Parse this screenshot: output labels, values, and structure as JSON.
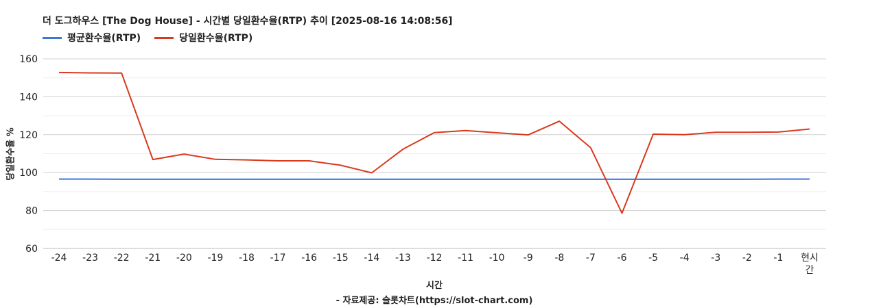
{
  "chart_data": {
    "type": "line",
    "title": "더 도그하우스 [The Dog House] - 시간별 당일환수율(RTP) 추이 [2025-08-16 14:08:56]",
    "xlabel": "시간",
    "ylabel": "당일환수율 %",
    "source": "- 자료제공: 슬롯차트(https://slot-chart.com)",
    "categories": [
      "-24",
      "-23",
      "-22",
      "-21",
      "-20",
      "-19",
      "-18",
      "-17",
      "-16",
      "-15",
      "-14",
      "-13",
      "-12",
      "-11",
      "-10",
      "-9",
      "-8",
      "-7",
      "-6",
      "-5",
      "-4",
      "-3",
      "-2",
      "-1",
      "현시간"
    ],
    "x_tick_lines": [
      [
        "-24"
      ],
      [
        "-23"
      ],
      [
        "-22"
      ],
      [
        "-21"
      ],
      [
        "-20"
      ],
      [
        "-19"
      ],
      [
        "-18"
      ],
      [
        "-17"
      ],
      [
        "-16"
      ],
      [
        "-15"
      ],
      [
        "-14"
      ],
      [
        "-13"
      ],
      [
        "-12"
      ],
      [
        "-11"
      ],
      [
        "-10"
      ],
      [
        "-9"
      ],
      [
        "-8"
      ],
      [
        "-7"
      ],
      [
        "-6"
      ],
      [
        "-5"
      ],
      [
        "-4"
      ],
      [
        "-3"
      ],
      [
        "-2"
      ],
      [
        "-1"
      ],
      [
        "현시",
        "간"
      ]
    ],
    "yticks": [
      60,
      80,
      100,
      120,
      140,
      160
    ],
    "ylim": [
      60,
      160
    ],
    "grid": true,
    "legend_position": "top-left",
    "series": [
      {
        "name": "평균환수율(RTP)",
        "color": "#3c78d8",
        "values": [
          96.6,
          96.6,
          96.5,
          96.5,
          96.5,
          96.5,
          96.5,
          96.5,
          96.5,
          96.5,
          96.5,
          96.5,
          96.5,
          96.5,
          96.5,
          96.5,
          96.5,
          96.5,
          96.5,
          96.5,
          96.5,
          96.5,
          96.5,
          96.6,
          96.6
        ]
      },
      {
        "name": "당일환수율(RTP)",
        "color": "#d9391c",
        "values": [
          152.8,
          152.6,
          152.5,
          106.9,
          109.8,
          107.0,
          106.7,
          106.2,
          106.2,
          103.9,
          99.9,
          112.4,
          121.1,
          122.2,
          121.0,
          119.9,
          127.1,
          113.1,
          78.6,
          120.3,
          120.0,
          121.3,
          121.3,
          121.4,
          123.0
        ]
      }
    ]
  }
}
